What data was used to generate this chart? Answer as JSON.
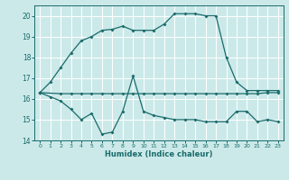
{
  "title": "",
  "xlabel": "Humidex (Indice chaleur)",
  "bg_color": "#cce9e9",
  "grid_color": "#ffffff",
  "line_color": "#1a6b6b",
  "ylim": [
    14,
    20.5
  ],
  "xlim": [
    -0.5,
    23.5
  ],
  "yticks": [
    14,
    15,
    16,
    17,
    18,
    19,
    20
  ],
  "xticks": [
    0,
    1,
    2,
    3,
    4,
    5,
    6,
    7,
    8,
    9,
    10,
    11,
    12,
    13,
    14,
    15,
    16,
    17,
    18,
    19,
    20,
    21,
    22,
    23
  ],
  "line1_x": [
    0,
    1,
    2,
    3,
    4,
    5,
    6,
    7,
    8,
    9,
    10,
    11,
    12,
    13,
    14,
    15,
    16,
    17,
    18,
    19,
    20,
    21,
    22,
    23
  ],
  "line1_y": [
    16.3,
    16.8,
    17.5,
    18.2,
    18.8,
    19.0,
    19.3,
    19.35,
    19.5,
    19.3,
    19.3,
    19.3,
    19.6,
    20.1,
    20.1,
    20.1,
    20.0,
    20.0,
    18.0,
    16.8,
    16.4,
    16.4,
    16.4,
    16.4
  ],
  "line2_x": [
    0,
    2,
    3,
    4,
    5,
    6,
    7,
    8,
    9,
    10,
    11,
    12,
    13,
    14,
    15,
    16,
    17,
    18,
    19,
    20,
    21,
    22,
    23
  ],
  "line2_y": [
    16.3,
    16.25,
    16.25,
    16.25,
    16.25,
    16.25,
    16.25,
    16.25,
    16.25,
    16.25,
    16.25,
    16.25,
    16.25,
    16.25,
    16.25,
    16.25,
    16.25,
    16.25,
    16.25,
    16.25,
    16.25,
    16.3,
    16.3
  ],
  "line3_x": [
    0,
    1,
    2,
    3,
    4,
    5,
    6,
    7,
    8,
    9,
    10,
    11,
    12,
    13,
    14,
    15,
    16,
    17,
    18,
    19,
    20,
    21,
    22,
    23
  ],
  "line3_y": [
    16.3,
    16.1,
    15.9,
    15.5,
    15.0,
    15.3,
    14.3,
    14.4,
    15.4,
    17.1,
    15.4,
    15.2,
    15.1,
    15.0,
    15.0,
    15.0,
    14.9,
    14.9,
    14.9,
    15.4,
    15.4,
    14.9,
    15.0,
    14.9
  ]
}
